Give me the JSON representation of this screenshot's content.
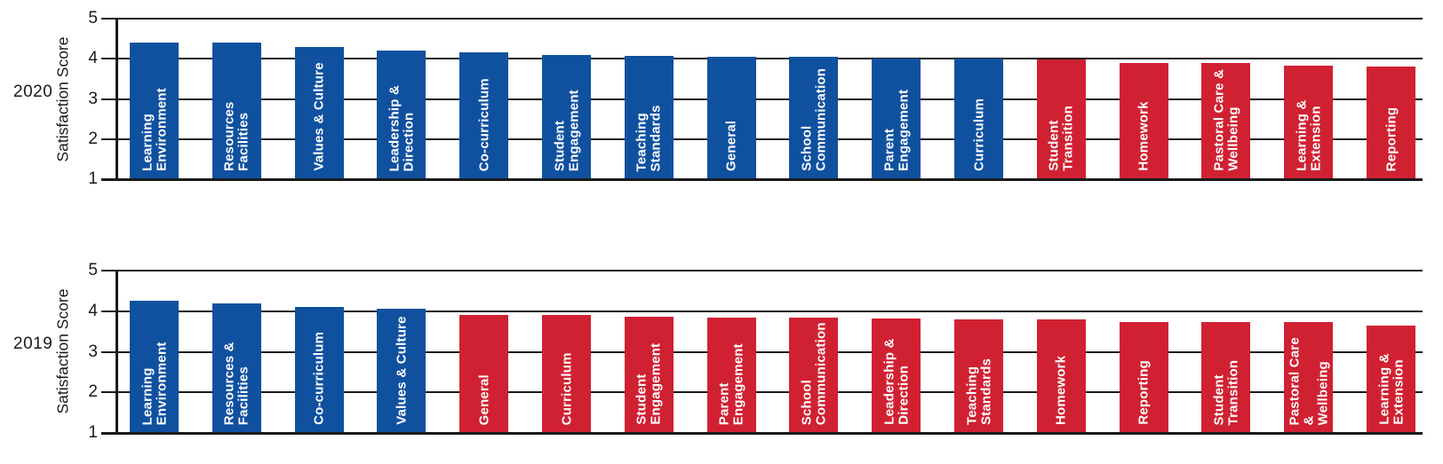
{
  "colors": {
    "blue": "#10519F",
    "red": "#D02132",
    "axis": "#1A1A1A",
    "bar_label_text": "#FFFFFF"
  },
  "chart_data": [
    {
      "type": "bar",
      "title": "2020",
      "ylabel": "Satisfaction Score",
      "ylim": [
        1,
        5
      ],
      "yticks": [
        5,
        4,
        3,
        2,
        1
      ],
      "grid": "horizontal",
      "legend": "none",
      "categories": [
        "Learning\nEnvironment",
        "Resources\nFacilities",
        "Values & Culture",
        "Leadership &\nDirection",
        "Co-curriculum",
        "Student\nEngagement",
        "Teaching\nStandards",
        "General",
        "School\nCommunication",
        "Parent\nEngagement",
        "Curriculum",
        "Student\nTransition",
        "Homework",
        "Pastoral Care &\nWellbeing",
        "Learning &\nExtension",
        "Reporting"
      ],
      "values": [
        4.4,
        4.4,
        4.3,
        4.2,
        4.15,
        4.1,
        4.07,
        4.05,
        4.04,
        4.0,
        4.0,
        3.99,
        3.9,
        3.9,
        3.82,
        3.8
      ],
      "bar_colors": [
        "blue",
        "blue",
        "blue",
        "blue",
        "blue",
        "blue",
        "blue",
        "blue",
        "blue",
        "blue",
        "blue",
        "red",
        "red",
        "red",
        "red",
        "red"
      ]
    },
    {
      "type": "bar",
      "title": "2019",
      "ylabel": "Satisfaction Score",
      "ylim": [
        1,
        5
      ],
      "yticks": [
        5,
        4,
        3,
        2,
        1
      ],
      "grid": "horizontal",
      "legend": "none",
      "categories": [
        "Learning\nEnvironment",
        "Resources &\nFacilities",
        "Co-curriculum",
        "Values & Culture",
        "General",
        "Curriculum",
        "Student\nEngagement",
        "Parent\nEngagement",
        "School\nCommunication",
        "Leadership &\nDirection",
        "Teaching\nStandards",
        "Homework",
        "Reporting",
        "Student\nTransition",
        "Pastoral Care &\nWellbeing",
        "Learning &\nExtension"
      ],
      "values": [
        4.25,
        4.2,
        4.1,
        4.05,
        3.9,
        3.9,
        3.87,
        3.85,
        3.85,
        3.83,
        3.8,
        3.8,
        3.74,
        3.73,
        3.73,
        3.65
      ],
      "bar_colors": [
        "blue",
        "blue",
        "blue",
        "blue",
        "red",
        "red",
        "red",
        "red",
        "red",
        "red",
        "red",
        "red",
        "red",
        "red",
        "red",
        "red"
      ]
    }
  ]
}
